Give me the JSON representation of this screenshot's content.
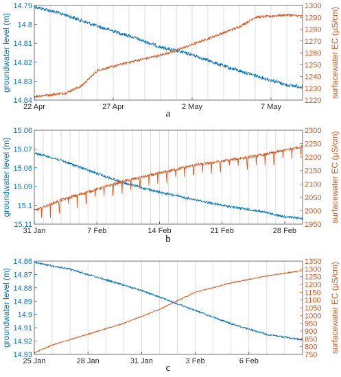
{
  "colors": {
    "gw": "#0072BD",
    "ec": "#D95319",
    "frame": "#4d4d4d",
    "grid": "#d6d6d6"
  },
  "chart_data": [
    {
      "type": "line",
      "panel_label": "a",
      "xlabel": "",
      "ylabel_left": "groundwater level (m)",
      "ylabel_right": "surfacewater EC (µS/cm)",
      "x_range": [
        "2019-04-22",
        "2019-05-09"
      ],
      "x_ticks": [
        "2019-04-22",
        "2019-04-27",
        "2019-05-02",
        "2019-05-07"
      ],
      "x_tick_labels": [
        "22 Apr",
        "27 Apr",
        "2 May",
        "7 May"
      ],
      "y_left_range": [
        14.79,
        14.84
      ],
      "y_left_reversed": true,
      "y_left_ticks": [
        "14.79",
        "14.8",
        "14.81",
        "14.82",
        "14.83",
        "14.84"
      ],
      "y_right_range": [
        1220,
        1300
      ],
      "y_right_ticks": [
        "1220",
        "1230",
        "1240",
        "1250",
        "1260",
        "1270",
        "1280",
        "1290",
        "1300"
      ],
      "grid": "daily vertical lines",
      "series": [
        {
          "axis": "left",
          "noise": 0.0009,
          "points": [
            [
              "2019-04-22",
              14.7905
            ],
            [
              "2019-04-24",
              14.795
            ],
            [
              "2019-04-26",
              14.801
            ],
            [
              "2019-04-28",
              14.806
            ],
            [
              "2019-04-30",
              14.812
            ],
            [
              "2019-05-02",
              14.816
            ],
            [
              "2019-05-04",
              14.822
            ],
            [
              "2019-05-06",
              14.827
            ],
            [
              "2019-05-08",
              14.832
            ],
            [
              "2019-05-09",
              14.833
            ]
          ]
        },
        {
          "axis": "right",
          "noise": 1.0,
          "points": [
            [
              "2019-04-22",
              1223
            ],
            [
              "2019-04-24",
              1226
            ],
            [
              "2019-04-25",
              1232
            ],
            [
              "2019-04-26",
              1245
            ],
            [
              "2019-04-28",
              1252
            ],
            [
              "2019-04-30",
              1258
            ],
            [
              "2019-05-01",
              1262
            ],
            [
              "2019-05-03",
              1272
            ],
            [
              "2019-05-05",
              1282
            ],
            [
              "2019-05-06",
              1290
            ],
            [
              "2019-05-08",
              1292
            ],
            [
              "2019-05-09",
              1291
            ]
          ]
        }
      ]
    },
    {
      "type": "line",
      "panel_label": "b",
      "xlabel": "",
      "ylabel_left": "groundwater level (m)",
      "ylabel_right": "surfacewater EC (µS/cm)",
      "x_range": [
        "2020-01-31",
        "2020-03-01"
      ],
      "x_ticks": [
        "2020-01-31",
        "2020-02-07",
        "2020-02-14",
        "2020-02-21",
        "2020-02-28"
      ],
      "x_tick_labels": [
        "31 Jan",
        "7 Feb",
        "14 Feb",
        "21 Feb",
        "28 Feb"
      ],
      "y_left_range": [
        15.06,
        15.11
      ],
      "y_left_reversed": true,
      "y_left_ticks": [
        "15.06",
        "15.07",
        "15.08",
        "15.09",
        "15.1",
        "15.11"
      ],
      "y_right_range": [
        1950,
        2300
      ],
      "y_right_ticks": [
        "1950",
        "2000",
        "2050",
        "2100",
        "2150",
        "2200",
        "2250",
        "2300"
      ],
      "grid": "daily vertical lines",
      "series": [
        {
          "axis": "left",
          "noise": 0.0006,
          "points": [
            [
              "2020-01-31",
              15.072
            ],
            [
              "2020-02-03",
              15.076
            ],
            [
              "2020-02-07",
              15.083
            ],
            [
              "2020-02-10",
              15.088
            ],
            [
              "2020-02-14",
              15.093
            ],
            [
              "2020-02-18",
              15.097
            ],
            [
              "2020-02-21",
              15.1
            ],
            [
              "2020-02-25",
              15.103
            ],
            [
              "2020-02-28",
              15.106
            ],
            [
              "2020-03-01",
              15.107
            ]
          ]
        },
        {
          "axis": "right",
          "noise": 5,
          "points": [
            [
              "2020-01-31",
              2000
            ],
            [
              "2020-02-03",
              2040
            ],
            [
              "2020-02-07",
              2080
            ],
            [
              "2020-02-10",
              2110
            ],
            [
              "2020-02-14",
              2140
            ],
            [
              "2020-02-18",
              2170
            ],
            [
              "2020-02-21",
              2185
            ],
            [
              "2020-02-25",
              2205
            ],
            [
              "2020-02-28",
              2225
            ],
            [
              "2020-03-01",
              2240
            ]
          ]
        }
      ]
    },
    {
      "type": "line",
      "panel_label": "c",
      "xlabel": "",
      "ylabel_left": "groundwater level (m)",
      "ylabel_right": "surfacewater EC (µS/cm)",
      "x_range": [
        "2021-01-25",
        "2021-02-09"
      ],
      "x_ticks": [
        "2021-01-25",
        "2021-01-28",
        "2021-01-31",
        "2021-02-03",
        "2021-02-06"
      ],
      "x_tick_labels": [
        "25 Jan",
        "28 Jan",
        "31 Jan",
        "3 Feb",
        "6 Feb"
      ],
      "y_left_range": [
        14.86,
        14.93
      ],
      "y_left_reversed": true,
      "y_left_ticks": [
        "14.86",
        "14.87",
        "14.88",
        "14.89",
        "14.9",
        "14.91",
        "14.92",
        "14.93"
      ],
      "y_right_range": [
        750,
        1350
      ],
      "y_right_ticks": [
        "750",
        "800",
        "850",
        "900",
        "950",
        "1000",
        "1050",
        "1100",
        "1150",
        "1200",
        "1250",
        "1300",
        "1350"
      ],
      "grid": "daily vertical lines",
      "series": [
        {
          "axis": "left",
          "noise": 0.0006,
          "points": [
            [
              "2021-01-25",
              14.861
            ],
            [
              "2021-01-27",
              14.866
            ],
            [
              "2021-01-29",
              14.874
            ],
            [
              "2021-01-31",
              14.882
            ],
            [
              "2021-02-01",
              14.887
            ],
            [
              "2021-02-03",
              14.897
            ],
            [
              "2021-02-05",
              14.907
            ],
            [
              "2021-02-07",
              14.915
            ],
            [
              "2021-02-09",
              14.919
            ]
          ]
        },
        {
          "axis": "right",
          "noise": 3,
          "points": [
            [
              "2021-01-25",
              760
            ],
            [
              "2021-01-26",
              810
            ],
            [
              "2021-01-28",
              880
            ],
            [
              "2021-01-30",
              950
            ],
            [
              "2021-02-01",
              1040
            ],
            [
              "2021-02-03",
              1150
            ],
            [
              "2021-02-05",
              1210
            ],
            [
              "2021-02-07",
              1255
            ],
            [
              "2021-02-09",
              1290
            ]
          ]
        }
      ]
    }
  ]
}
